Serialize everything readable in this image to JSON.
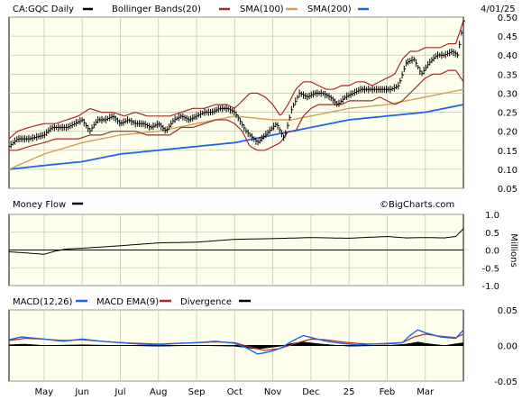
{
  "header": {
    "symbol_label": "CA:GQC Daily",
    "bollinger_label": "Bollinger Bands(20)",
    "sma100_label": "SMA(100)",
    "sma200_label": "SMA(200)",
    "date_label": "4/01/25"
  },
  "watermark": "©BigCharts.com",
  "colors": {
    "background_plot": "#ffffee",
    "grid": "#c8c8b4",
    "price": "#000000",
    "bollinger": "#a52a2a",
    "sma100": "#d2a050",
    "sma200": "#1e64e6",
    "money_flow": "#000000",
    "macd": "#1e64e6",
    "macd_ema": "#a52a2a",
    "divergence": "#000000"
  },
  "chart_data": [
    {
      "type": "line",
      "name": "price-panel",
      "series_labels": [
        "CA:GQC Daily",
        "Bollinger Bands(20)",
        "SMA(100)",
        "SMA(200)"
      ],
      "ylim": [
        0.05,
        0.5
      ],
      "y_ticks": [
        "0.50",
        "0.45",
        "0.40",
        "0.35",
        "0.30",
        "0.25",
        "0.20",
        "0.15",
        "0.10",
        "0.05"
      ],
      "x_ticks": [
        "May",
        "Jun",
        "Jul",
        "Aug",
        "Sep",
        "Oct",
        "Nov",
        "Dec",
        "25",
        "Feb",
        "Mar"
      ],
      "x_tick_positions_month_index": [
        1,
        2,
        3,
        4,
        5,
        6,
        7,
        8,
        9,
        10,
        11
      ],
      "x_range_months": [
        0.08,
        12.0
      ],
      "price_series": {
        "name": "CA:GQC Daily",
        "anchors_month": [
          0.08,
          0.3,
          0.6,
          1.0,
          1.2,
          1.4,
          1.6,
          1.8,
          2.0,
          2.2,
          2.4,
          2.6,
          2.8,
          3.0,
          3.2,
          3.4,
          3.6,
          3.8,
          4.0,
          4.2,
          4.4,
          4.6,
          4.8,
          5.0,
          5.2,
          5.4,
          5.6,
          5.8,
          6.0,
          6.3,
          6.6,
          6.9,
          7.1,
          7.3,
          7.5,
          7.7,
          7.9,
          8.1,
          8.3,
          8.5,
          8.7,
          8.9,
          9.1,
          9.3,
          9.5,
          9.7,
          9.9,
          10.1,
          10.3,
          10.5,
          10.7,
          10.9,
          11.1,
          11.3,
          11.5,
          11.7,
          11.85,
          12.0
        ],
        "anchors_value": [
          0.16,
          0.18,
          0.18,
          0.19,
          0.21,
          0.21,
          0.21,
          0.22,
          0.23,
          0.2,
          0.23,
          0.23,
          0.24,
          0.22,
          0.23,
          0.22,
          0.22,
          0.21,
          0.22,
          0.2,
          0.23,
          0.24,
          0.23,
          0.24,
          0.25,
          0.25,
          0.26,
          0.26,
          0.25,
          0.2,
          0.17,
          0.2,
          0.22,
          0.18,
          0.26,
          0.3,
          0.29,
          0.3,
          0.3,
          0.29,
          0.27,
          0.29,
          0.3,
          0.31,
          0.31,
          0.31,
          0.31,
          0.31,
          0.32,
          0.38,
          0.39,
          0.35,
          0.38,
          0.4,
          0.4,
          0.41,
          0.4,
          0.49
        ]
      },
      "bollinger_upper": {
        "anchors_month": [
          0.08,
          0.3,
          0.6,
          1.0,
          1.3,
          1.6,
          1.9,
          2.2,
          2.5,
          2.8,
          3.1,
          3.4,
          3.7,
          4.0,
          4.3,
          4.6,
          4.9,
          5.2,
          5.5,
          5.8,
          6.0,
          6.2,
          6.4,
          6.6,
          6.8,
          7.0,
          7.2,
          7.4,
          7.6,
          7.8,
          8.0,
          8.2,
          8.4,
          8.6,
          8.8,
          9.0,
          9.2,
          9.4,
          9.6,
          9.8,
          10.0,
          10.2,
          10.4,
          10.6,
          10.8,
          11.0,
          11.2,
          11.4,
          11.6,
          11.8,
          12.0
        ],
        "anchors_value": [
          0.18,
          0.2,
          0.21,
          0.22,
          0.22,
          0.23,
          0.24,
          0.26,
          0.25,
          0.25,
          0.24,
          0.25,
          0.24,
          0.24,
          0.24,
          0.25,
          0.26,
          0.26,
          0.27,
          0.27,
          0.26,
          0.28,
          0.3,
          0.3,
          0.29,
          0.27,
          0.24,
          0.27,
          0.31,
          0.33,
          0.33,
          0.32,
          0.31,
          0.31,
          0.32,
          0.32,
          0.33,
          0.33,
          0.32,
          0.33,
          0.34,
          0.35,
          0.39,
          0.41,
          0.41,
          0.42,
          0.42,
          0.42,
          0.43,
          0.43,
          0.49
        ]
      },
      "bollinger_lower": {
        "anchors_month": [
          0.08,
          0.3,
          0.6,
          1.0,
          1.3,
          1.6,
          1.9,
          2.2,
          2.5,
          2.8,
          3.1,
          3.4,
          3.7,
          4.0,
          4.3,
          4.6,
          4.9,
          5.2,
          5.5,
          5.8,
          6.0,
          6.2,
          6.4,
          6.6,
          6.8,
          7.0,
          7.2,
          7.4,
          7.6,
          7.8,
          8.0,
          8.2,
          8.4,
          8.6,
          8.8,
          9.0,
          9.2,
          9.4,
          9.6,
          9.8,
          10.0,
          10.2,
          10.4,
          10.6,
          10.8,
          11.0,
          11.2,
          11.4,
          11.6,
          11.8,
          12.0
        ],
        "anchors_value": [
          0.15,
          0.15,
          0.16,
          0.17,
          0.18,
          0.18,
          0.18,
          0.19,
          0.19,
          0.2,
          0.2,
          0.2,
          0.19,
          0.19,
          0.19,
          0.21,
          0.21,
          0.22,
          0.23,
          0.23,
          0.22,
          0.2,
          0.16,
          0.15,
          0.15,
          0.16,
          0.17,
          0.2,
          0.2,
          0.24,
          0.26,
          0.27,
          0.27,
          0.27,
          0.27,
          0.28,
          0.28,
          0.28,
          0.28,
          0.29,
          0.28,
          0.27,
          0.28,
          0.3,
          0.32,
          0.34,
          0.35,
          0.35,
          0.36,
          0.36,
          0.33
        ]
      },
      "sma100": {
        "anchors_month": [
          0.08,
          1.0,
          2.0,
          3.0,
          4.0,
          5.0,
          6.0,
          7.0,
          7.5,
          8.0,
          9.0,
          10.0,
          11.0,
          12.0
        ],
        "anchors_value": [
          0.1,
          0.14,
          0.17,
          0.19,
          0.2,
          0.22,
          0.24,
          0.23,
          0.23,
          0.24,
          0.26,
          0.27,
          0.29,
          0.31
        ]
      },
      "sma200": {
        "anchors_month": [
          0.08,
          1.0,
          2.0,
          3.0,
          4.0,
          5.0,
          6.0,
          7.0,
          8.0,
          9.0,
          10.0,
          11.0,
          12.0
        ],
        "anchors_value": [
          0.1,
          0.11,
          0.12,
          0.14,
          0.15,
          0.16,
          0.17,
          0.19,
          0.21,
          0.23,
          0.24,
          0.25,
          0.27
        ]
      }
    },
    {
      "type": "line",
      "name": "money-flow-panel",
      "title": "Money Flow",
      "ylabel": "Millions",
      "ylim": [
        -1.0,
        1.0
      ],
      "y_ticks": [
        "1.0",
        "0.5",
        "0.0",
        "-0.5",
        "-1.0"
      ],
      "series": [
        {
          "name": "Money Flow",
          "anchors_month": [
            0.08,
            0.5,
            1.0,
            1.3,
            1.6,
            2.0,
            3.0,
            4.0,
            5.0,
            6.0,
            7.0,
            8.0,
            9.0,
            10.0,
            10.5,
            11.0,
            11.5,
            11.8,
            12.0
          ],
          "anchors_value": [
            -0.05,
            -0.08,
            -0.12,
            -0.03,
            0.03,
            0.05,
            0.12,
            0.2,
            0.22,
            0.3,
            0.32,
            0.35,
            0.33,
            0.38,
            0.34,
            0.35,
            0.34,
            0.38,
            0.6
          ]
        }
      ]
    },
    {
      "type": "line",
      "name": "macd-panel",
      "series_labels": [
        "MACD(12,26)",
        "MACD EMA(9)",
        "Divergence"
      ],
      "ylim": [
        -0.05,
        0.05
      ],
      "y_ticks": [
        "0.05",
        "0.00",
        "-0.05"
      ],
      "series": [
        {
          "name": "MACD(12,26)",
          "anchors_month": [
            0.08,
            0.4,
            1.0,
            1.5,
            2.0,
            2.5,
            3.0,
            3.5,
            4.0,
            4.5,
            5.0,
            5.5,
            6.0,
            6.3,
            6.6,
            6.9,
            7.2,
            7.5,
            7.8,
            8.1,
            8.4,
            8.8,
            9.2,
            9.6,
            10.0,
            10.4,
            10.6,
            10.8,
            11.0,
            11.4,
            11.8,
            12.0
          ],
          "anchors_value": [
            0.008,
            0.012,
            0.009,
            0.006,
            0.009,
            0.006,
            0.004,
            0.002,
            0.001,
            0.003,
            0.004,
            0.006,
            0.003,
            -0.003,
            -0.012,
            -0.009,
            -0.004,
            0.006,
            0.014,
            0.01,
            0.006,
            0.003,
            0.001,
            0.002,
            0.003,
            0.004,
            0.014,
            0.022,
            0.018,
            0.012,
            0.01,
            0.022
          ]
        },
        {
          "name": "MACD EMA(9)",
          "anchors_month": [
            0.08,
            0.5,
            1.0,
            1.5,
            2.0,
            2.5,
            3.0,
            3.5,
            4.0,
            4.5,
            5.0,
            5.5,
            6.0,
            6.4,
            6.8,
            7.2,
            7.6,
            8.0,
            8.4,
            8.8,
            9.2,
            9.6,
            10.0,
            10.4,
            10.7,
            11.0,
            11.4,
            11.8,
            12.0
          ],
          "anchors_value": [
            0.007,
            0.01,
            0.009,
            0.007,
            0.008,
            0.006,
            0.004,
            0.003,
            0.002,
            0.003,
            0.004,
            0.005,
            0.004,
            -0.002,
            -0.007,
            -0.004,
            0.003,
            0.009,
            0.008,
            0.005,
            0.003,
            0.002,
            0.002,
            0.004,
            0.012,
            0.016,
            0.013,
            0.011,
            0.016
          ]
        },
        {
          "name": "Divergence",
          "anchors_month": [
            0.08,
            0.5,
            1.0,
            2.0,
            3.0,
            4.0,
            5.0,
            6.0,
            6.3,
            6.6,
            6.9,
            7.2,
            7.5,
            7.8,
            8.1,
            8.5,
            9.0,
            10.0,
            10.5,
            10.8,
            11.0,
            11.5,
            12.0
          ],
          "anchors_value": [
            0.001,
            0.002,
            0.0,
            0.001,
            0.0,
            -0.001,
            0.0,
            -0.001,
            -0.003,
            -0.005,
            -0.003,
            -0.001,
            0.003,
            0.005,
            0.003,
            0.001,
            -0.001,
            0.0,
            0.002,
            0.005,
            0.003,
            0.0,
            0.004
          ]
        }
      ]
    }
  ]
}
